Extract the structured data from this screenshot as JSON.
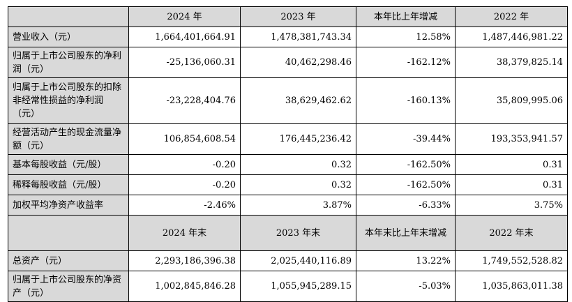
{
  "header1": [
    "",
    "2024 年",
    "2023 年",
    "本年比上年增减",
    "2022 年"
  ],
  "rows1": [
    {
      "label": "营业收入（元）",
      "v2024": "1,664,401,664.91",
      "v2023": "1,478,381,743.34",
      "change": "12.58%",
      "v2022": "1,487,446,981.22",
      "h": "h1"
    },
    {
      "label": "归属于上市公司股东的净利润（元）",
      "v2024": "-25,136,060.31",
      "v2023": "40,462,298.46",
      "change": "-162.12%",
      "v2022": "38,379,825.14",
      "h": "h2"
    },
    {
      "label": "归属于上市公司股东的扣除非经常性损益的净利润（元）",
      "v2024": "-23,228,404.76",
      "v2023": "38,629,462.62",
      "change": "-160.13%",
      "v2022": "35,809,995.06",
      "h": "h3"
    },
    {
      "label": "经营活动产生的现金流量净额（元）",
      "v2024": "106,854,608.54",
      "v2023": "176,445,236.42",
      "change": "-39.44%",
      "v2022": "193,353,941.57",
      "h": "h2"
    },
    {
      "label": "基本每股收益（元/股）",
      "v2024": "-0.20",
      "v2023": "0.32",
      "change": "-162.50%",
      "v2022": "0.31",
      "h": "h1"
    },
    {
      "label": "稀释每股收益（元/股）",
      "v2024": "-0.20",
      "v2023": "0.32",
      "change": "-162.50%",
      "v2022": "0.31",
      "h": "h1"
    },
    {
      "label": "加权平均净资产收益率",
      "v2024": "-2.46%",
      "v2023": "3.87%",
      "change": "-6.33%",
      "v2022": "3.75%",
      "h": "h1"
    }
  ],
  "header2": [
    "",
    "2024 年末",
    "2023 年末",
    "本年末比上年末增减",
    "2022 年末"
  ],
  "rows2": [
    {
      "label": "总资产（元）",
      "v2024": "2,293,186,396.38",
      "v2023": "2,025,440,116.89",
      "change": "13.22%",
      "v2022": "1,749,552,528.82",
      "h": "h1"
    },
    {
      "label": "归属于上市公司股东的净资产（元）",
      "v2024": "1,002,845,846.28",
      "v2023": "1,055,945,289.15",
      "change": "-5.03%",
      "v2022": "1,035,863,011.38",
      "h": "h2"
    }
  ]
}
